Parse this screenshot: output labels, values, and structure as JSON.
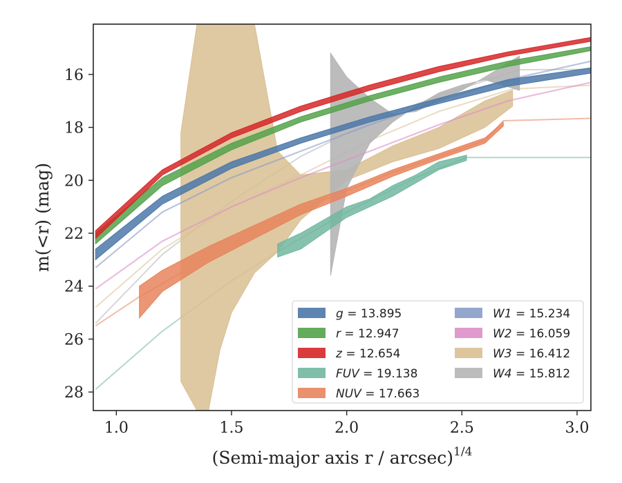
{
  "chart_data": {
    "type": "area",
    "xlabel": "(Semi-major axis r / arcsec)",
    "xlabel_sup": "1/4",
    "ylabel": "m(<r) (mag)",
    "xlim": [
      0.9,
      3.06
    ],
    "ylim": [
      28.7,
      14.1
    ],
    "y_inverted": true,
    "x_ticks": [
      1.0,
      1.5,
      2.0,
      2.5,
      3.0
    ],
    "x_tick_labels": [
      "1.0",
      "1.5",
      "2.0",
      "2.5",
      "3.0"
    ],
    "y_ticks": [
      16,
      18,
      20,
      22,
      24,
      26,
      28
    ],
    "y_tick_labels": [
      "16",
      "18",
      "20",
      "22",
      "24",
      "26",
      "28"
    ],
    "grid": false,
    "legend_position": "lower-right",
    "series": [
      {
        "key": "g",
        "label_var": "g",
        "label_value": "13.895",
        "color": "#4c78a8",
        "band_x": [
          0.91,
          1.2,
          1.5,
          1.8,
          2.1,
          2.4,
          2.7,
          3.06
        ],
        "band_upper": [
          22.6,
          20.6,
          19.3,
          18.4,
          17.6,
          16.9,
          16.2,
          15.75
        ],
        "band_lower": [
          23.0,
          20.9,
          19.55,
          18.6,
          17.8,
          17.1,
          16.45,
          15.95
        ]
      },
      {
        "key": "r",
        "label_var": "r",
        "label_value": "12.947",
        "color": "#54a24b",
        "band_x": [
          0.91,
          1.2,
          1.5,
          1.8,
          2.1,
          2.4,
          2.7,
          3.06
        ],
        "band_upper": [
          22.0,
          19.9,
          18.6,
          17.6,
          16.8,
          16.1,
          15.5,
          14.95
        ],
        "band_lower": [
          22.4,
          20.2,
          18.85,
          17.8,
          17.0,
          16.3,
          15.7,
          15.1
        ]
      },
      {
        "key": "z",
        "label_var": "z",
        "label_value": "12.654",
        "color": "#d62728",
        "band_x": [
          0.91,
          1.2,
          1.5,
          1.8,
          2.1,
          2.4,
          2.7,
          3.06
        ],
        "band_upper": [
          21.9,
          19.6,
          18.2,
          17.2,
          16.4,
          15.7,
          15.15,
          14.6
        ],
        "band_lower": [
          22.2,
          19.8,
          18.4,
          17.4,
          16.6,
          15.9,
          15.3,
          14.75
        ]
      },
      {
        "key": "FUV",
        "label_var": "FUV",
        "label_value": "19.138",
        "color": "#72b7a1",
        "band_x": [
          1.7,
          1.8,
          1.9,
          2.0,
          2.1,
          2.2,
          2.3,
          2.4,
          2.52
        ],
        "band_upper": [
          22.4,
          22.0,
          21.5,
          21.0,
          20.7,
          20.2,
          19.8,
          19.3,
          19.05
        ],
        "band_lower": [
          22.9,
          22.6,
          22.0,
          21.4,
          21.0,
          20.6,
          20.1,
          19.6,
          19.25
        ],
        "faint_x": [
          0.91,
          1.2,
          1.5,
          1.7,
          2.0,
          2.3,
          2.52,
          3.06
        ],
        "faint_y": [
          27.9,
          25.7,
          23.8,
          22.7,
          21.2,
          19.9,
          19.14,
          19.14
        ]
      },
      {
        "key": "NUV",
        "label_var": "NUV",
        "label_value": "17.663",
        "color": "#e8845c",
        "band_x": [
          1.1,
          1.2,
          1.4,
          1.6,
          1.8,
          2.0,
          2.2,
          2.4,
          2.6,
          2.68
        ],
        "band_upper": [
          24.0,
          23.4,
          22.5,
          21.7,
          20.9,
          20.3,
          19.6,
          19.0,
          18.4,
          17.8
        ],
        "band_lower": [
          25.2,
          24.2,
          23.1,
          22.2,
          21.3,
          20.6,
          19.85,
          19.2,
          18.6,
          17.95
        ],
        "faint_x": [
          0.91,
          1.1,
          1.4,
          1.8,
          2.2,
          2.6,
          2.68,
          3.06
        ],
        "faint_y": [
          25.5,
          24.4,
          22.9,
          21.1,
          19.7,
          18.5,
          17.75,
          17.66
        ]
      },
      {
        "key": "W1",
        "label_var": "W1",
        "label_value": "15.234",
        "color": "#8a9cc7",
        "line_x": [
          0.91,
          1.2,
          1.5,
          1.8,
          2.1,
          2.4,
          2.7,
          3.06
        ],
        "line_y": [
          23.3,
          21.2,
          19.9,
          18.9,
          17.9,
          17.0,
          16.2,
          15.5
        ]
      },
      {
        "key": "W2",
        "label_var": "W2",
        "label_value": "16.059",
        "color": "#dd8fc6",
        "line_x": [
          0.91,
          1.2,
          1.5,
          1.8,
          2.1,
          2.4,
          2.7,
          3.06
        ],
        "line_y": [
          24.1,
          22.3,
          21.0,
          19.9,
          18.9,
          17.9,
          17.0,
          16.3
        ]
      },
      {
        "key": "W3",
        "label_var": "W3",
        "label_value": "16.412",
        "color": "#d9bf92",
        "band_x": [
          1.28,
          1.35,
          1.4,
          1.45,
          1.5,
          1.6,
          1.7,
          1.8,
          2.0,
          2.2,
          2.4,
          2.6,
          2.72
        ],
        "band_upper": [
          18.2,
          14.1,
          14.1,
          14.1,
          14.1,
          14.1,
          18.9,
          19.8,
          19.6,
          18.7,
          18.0,
          17.0,
          16.6
        ],
        "band_lower": [
          27.6,
          28.7,
          28.7,
          26.4,
          25.0,
          23.5,
          22.7,
          21.5,
          20.0,
          19.3,
          18.8,
          18.0,
          17.2
        ],
        "faint_x": [
          0.91,
          1.2,
          1.5,
          1.8,
          2.1,
          2.4,
          2.72,
          3.06
        ],
        "faint_y": [
          24.8,
          22.6,
          21.0,
          19.8,
          18.5,
          17.4,
          16.55,
          16.41
        ]
      },
      {
        "key": "W4",
        "label_var": "W4",
        "label_value": "15.812",
        "color": "#b5b5b5",
        "band_x": [
          1.93,
          2.0,
          2.1,
          2.2,
          2.3,
          2.4,
          2.5,
          2.6,
          2.75
        ],
        "band_upper": [
          15.2,
          16.1,
          16.9,
          17.5,
          17.4,
          17.0,
          16.6,
          16.1,
          15.3
        ],
        "band_lower": [
          23.6,
          20.3,
          18.6,
          17.8,
          17.2,
          16.7,
          16.4,
          16.2,
          16.6
        ],
        "faint_x": [
          0.91,
          1.2,
          1.5,
          1.8,
          2.1,
          2.4,
          2.75,
          3.06
        ],
        "faint_y": [
          25.4,
          22.8,
          20.8,
          19.1,
          17.8,
          16.8,
          15.82,
          15.81
        ]
      }
    ]
  }
}
